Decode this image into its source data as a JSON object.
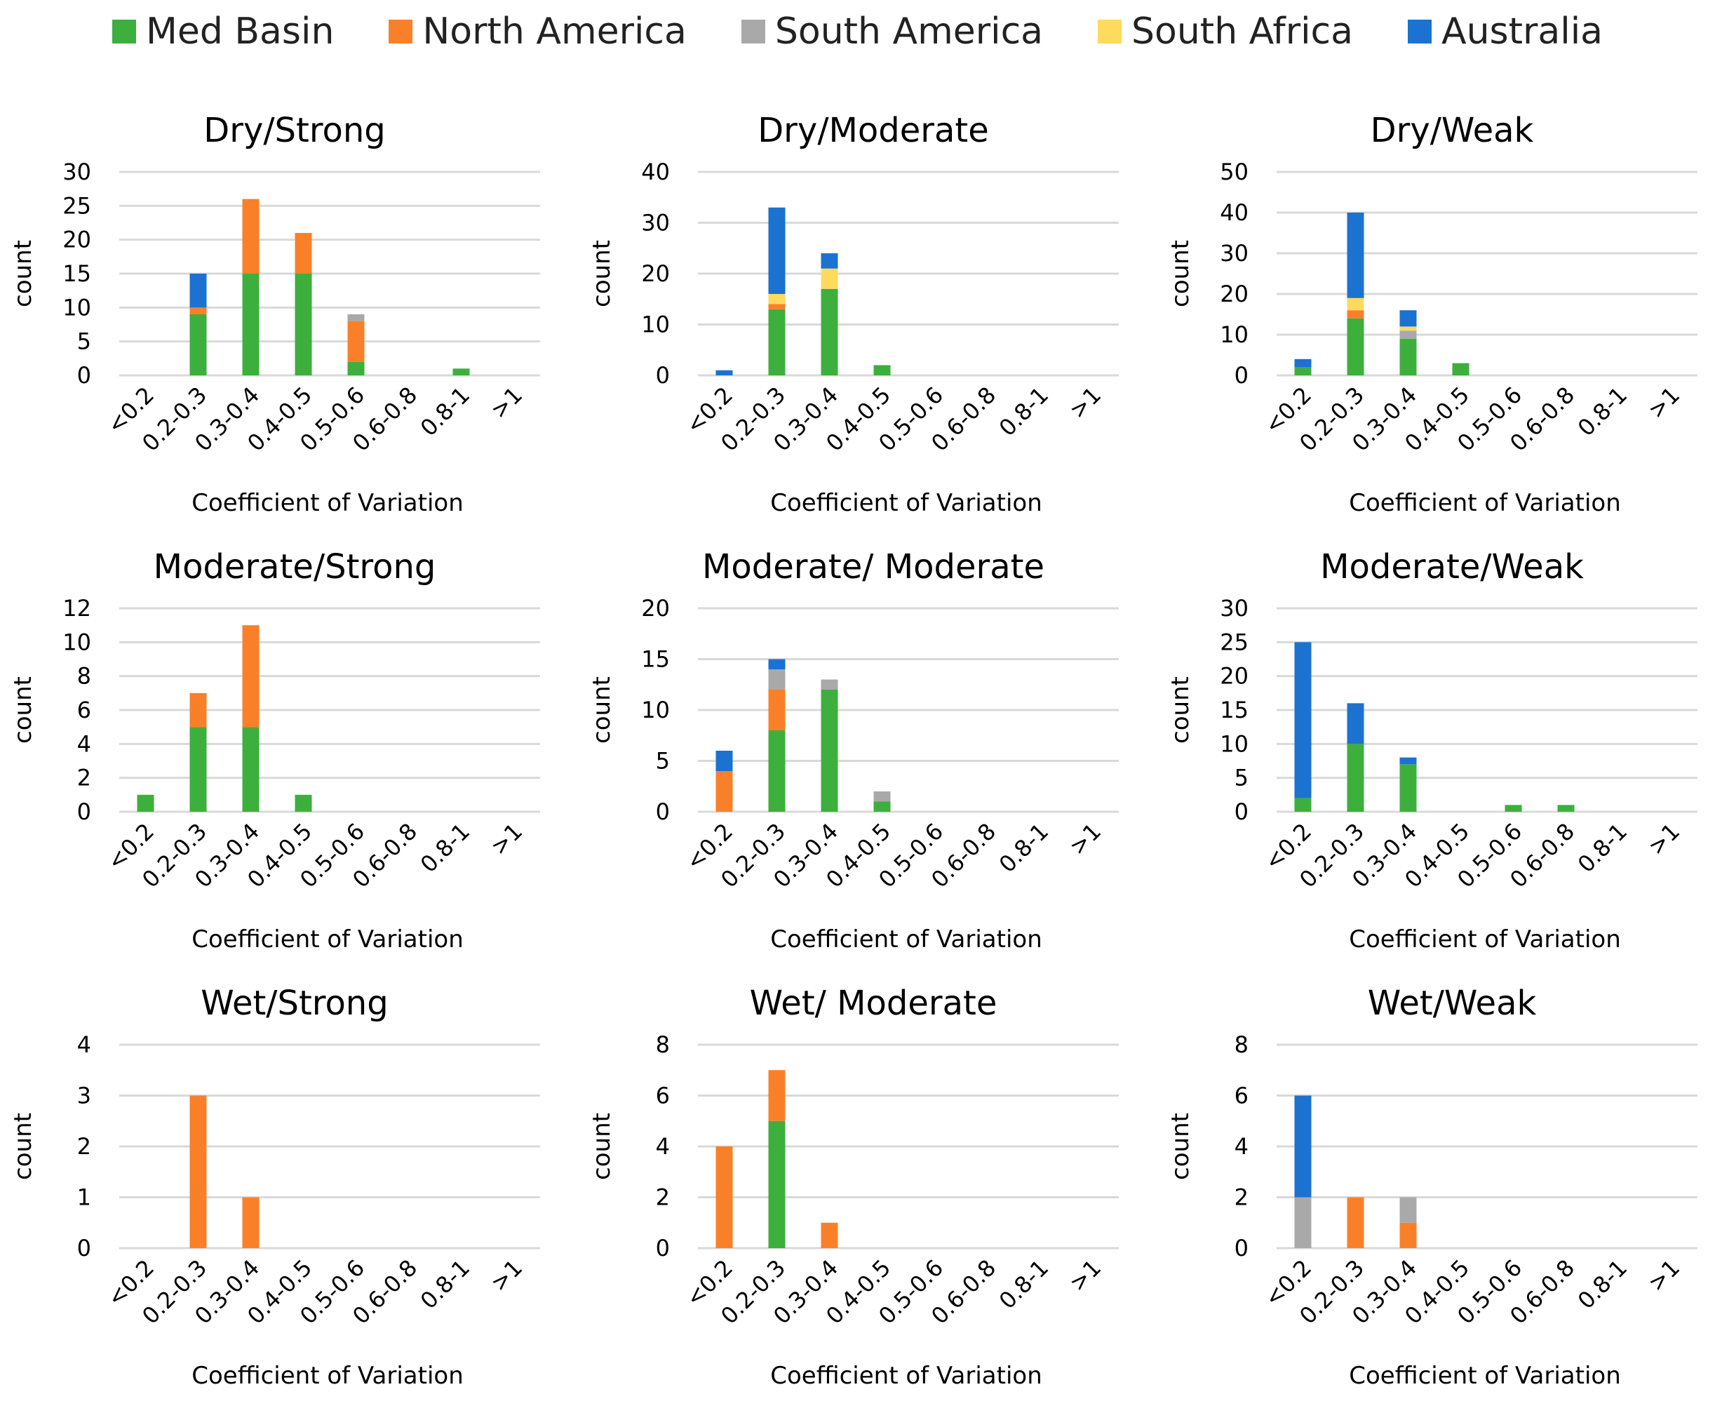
{
  "legend": {
    "items": [
      {
        "label": "Med Basin",
        "color": "#3daf3d"
      },
      {
        "label": "North America",
        "color": "#f98028"
      },
      {
        "label": "South America",
        "color": "#a9a9a9"
      },
      {
        "label": "South Africa",
        "color": "#fedb5d"
      },
      {
        "label": "Australia",
        "color": "#1b72d0"
      }
    ]
  },
  "chart_data": [
    {
      "type": "bar",
      "stacked": true,
      "title": "Dry/Strong",
      "xlabel": "Coefficient of Variation",
      "ylabel": "count",
      "ylim": [
        0,
        30
      ],
      "yticks": [
        0,
        5,
        10,
        15,
        20,
        25,
        30
      ],
      "categories": [
        "<0.2",
        "0.2-0.3",
        "0.3-0.4",
        "0.4-0.5",
        "0.5-0.6",
        "0.6-0.8",
        "0.8-1",
        ">1"
      ],
      "series": [
        {
          "name": "Med Basin",
          "values": [
            0,
            9,
            15,
            15,
            2,
            0,
            1,
            0
          ]
        },
        {
          "name": "North America",
          "values": [
            0,
            1,
            11,
            6,
            6,
            0,
            0,
            0
          ]
        },
        {
          "name": "South America",
          "values": [
            0,
            0,
            0,
            0,
            1,
            0,
            0,
            0
          ]
        },
        {
          "name": "South Africa",
          "values": [
            0,
            0,
            0,
            0,
            0,
            0,
            0,
            0
          ]
        },
        {
          "name": "Australia",
          "values": [
            0,
            5,
            0,
            0,
            0,
            0,
            0,
            0
          ]
        }
      ]
    },
    {
      "type": "bar",
      "stacked": true,
      "title": "Dry/Moderate",
      "xlabel": "Coefficient of Variation",
      "ylabel": "count",
      "ylim": [
        0,
        40
      ],
      "yticks": [
        0,
        10,
        20,
        30,
        40
      ],
      "categories": [
        "<0.2",
        "0.2-0.3",
        "0.3-0.4",
        "0.4-0.5",
        "0.5-0.6",
        "0.6-0.8",
        "0.8-1",
        ">1"
      ],
      "series": [
        {
          "name": "Med Basin",
          "values": [
            0,
            13,
            17,
            2,
            0,
            0,
            0,
            0
          ]
        },
        {
          "name": "North America",
          "values": [
            0,
            1,
            0,
            0,
            0,
            0,
            0,
            0
          ]
        },
        {
          "name": "South America",
          "values": [
            0,
            0,
            0,
            0,
            0,
            0,
            0,
            0
          ]
        },
        {
          "name": "South Africa",
          "values": [
            0,
            2,
            4,
            0,
            0,
            0,
            0,
            0
          ]
        },
        {
          "name": "Australia",
          "values": [
            1,
            17,
            3,
            0,
            0,
            0,
            0,
            0
          ]
        }
      ]
    },
    {
      "type": "bar",
      "stacked": true,
      "title": "Dry/Weak",
      "xlabel": "Coefficient of Variation",
      "ylabel": "count",
      "ylim": [
        0,
        50
      ],
      "yticks": [
        0,
        10,
        20,
        30,
        40,
        50
      ],
      "categories": [
        "<0.2",
        "0.2-0.3",
        "0.3-0.4",
        "0.4-0.5",
        "0.5-0.6",
        "0.6-0.8",
        "0.8-1",
        ">1"
      ],
      "series": [
        {
          "name": "Med Basin",
          "values": [
            2,
            14,
            9,
            3,
            0,
            0,
            0,
            0
          ]
        },
        {
          "name": "North America",
          "values": [
            0,
            2,
            0,
            0,
            0,
            0,
            0,
            0
          ]
        },
        {
          "name": "South America",
          "values": [
            0,
            0,
            2,
            0,
            0,
            0,
            0,
            0
          ]
        },
        {
          "name": "South Africa",
          "values": [
            0,
            3,
            1,
            0,
            0,
            0,
            0,
            0
          ]
        },
        {
          "name": "Australia",
          "values": [
            2,
            21,
            4,
            0,
            0,
            0,
            0,
            0
          ]
        }
      ]
    },
    {
      "type": "bar",
      "stacked": true,
      "title": "Moderate/Strong",
      "xlabel": "Coefficient of Variation",
      "ylabel": "count",
      "ylim": [
        0,
        12
      ],
      "yticks": [
        0,
        2,
        4,
        6,
        8,
        10,
        12
      ],
      "categories": [
        "<0.2",
        "0.2-0.3",
        "0.3-0.4",
        "0.4-0.5",
        "0.5-0.6",
        "0.6-0.8",
        "0.8-1",
        ">1"
      ],
      "series": [
        {
          "name": "Med Basin",
          "values": [
            1,
            5,
            5,
            1,
            0,
            0,
            0,
            0
          ]
        },
        {
          "name": "North America",
          "values": [
            0,
            2,
            6,
            0,
            0,
            0,
            0,
            0
          ]
        },
        {
          "name": "South America",
          "values": [
            0,
            0,
            0,
            0,
            0,
            0,
            0,
            0
          ]
        },
        {
          "name": "South Africa",
          "values": [
            0,
            0,
            0,
            0,
            0,
            0,
            0,
            0
          ]
        },
        {
          "name": "Australia",
          "values": [
            0,
            0,
            0,
            0,
            0,
            0,
            0,
            0
          ]
        }
      ]
    },
    {
      "type": "bar",
      "stacked": true,
      "title": "Moderate/ Moderate",
      "xlabel": "Coefficient of Variation",
      "ylabel": "count",
      "ylim": [
        0,
        20
      ],
      "yticks": [
        0,
        5,
        10,
        15,
        20
      ],
      "categories": [
        "<0.2",
        "0.2-0.3",
        "0.3-0.4",
        "0.4-0.5",
        "0.5-0.6",
        "0.6-0.8",
        "0.8-1",
        ">1"
      ],
      "series": [
        {
          "name": "Med Basin",
          "values": [
            0,
            8,
            12,
            1,
            0,
            0,
            0,
            0
          ]
        },
        {
          "name": "North America",
          "values": [
            4,
            4,
            0,
            0,
            0,
            0,
            0,
            0
          ]
        },
        {
          "name": "South America",
          "values": [
            0,
            2,
            1,
            1,
            0,
            0,
            0,
            0
          ]
        },
        {
          "name": "South Africa",
          "values": [
            0,
            0,
            0,
            0,
            0,
            0,
            0,
            0
          ]
        },
        {
          "name": "Australia",
          "values": [
            2,
            1,
            0,
            0,
            0,
            0,
            0,
            0
          ]
        }
      ]
    },
    {
      "type": "bar",
      "stacked": true,
      "title": "Moderate/Weak",
      "xlabel": "Coefficient of Variation",
      "ylabel": "count",
      "ylim": [
        0,
        30
      ],
      "yticks": [
        0,
        5,
        10,
        15,
        20,
        25,
        30
      ],
      "categories": [
        "<0.2",
        "0.2-0.3",
        "0.3-0.4",
        "0.4-0.5",
        "0.5-0.6",
        "0.6-0.8",
        "0.8-1",
        ">1"
      ],
      "series": [
        {
          "name": "Med Basin",
          "values": [
            2,
            10,
            7,
            0,
            1,
            1,
            0,
            0
          ]
        },
        {
          "name": "North America",
          "values": [
            0,
            0,
            0,
            0,
            0,
            0,
            0,
            0
          ]
        },
        {
          "name": "South America",
          "values": [
            0,
            0,
            0,
            0,
            0,
            0,
            0,
            0
          ]
        },
        {
          "name": "South Africa",
          "values": [
            0,
            0,
            0,
            0,
            0,
            0,
            0,
            0
          ]
        },
        {
          "name": "Australia",
          "values": [
            23,
            6,
            1,
            0,
            0,
            0,
            0,
            0
          ]
        }
      ]
    },
    {
      "type": "bar",
      "stacked": true,
      "title": "Wet/Strong",
      "xlabel": "Coefficient of Variation",
      "ylabel": "count",
      "ylim": [
        0,
        4
      ],
      "yticks": [
        0,
        1,
        2,
        3,
        4
      ],
      "categories": [
        "<0.2",
        "0.2-0.3",
        "0.3-0.4",
        "0.4-0.5",
        "0.5-0.6",
        "0.6-0.8",
        "0.8-1",
        ">1"
      ],
      "series": [
        {
          "name": "Med Basin",
          "values": [
            0,
            0,
            0,
            0,
            0,
            0,
            0,
            0
          ]
        },
        {
          "name": "North America",
          "values": [
            0,
            3,
            1,
            0,
            0,
            0,
            0,
            0
          ]
        },
        {
          "name": "South America",
          "values": [
            0,
            0,
            0,
            0,
            0,
            0,
            0,
            0
          ]
        },
        {
          "name": "South Africa",
          "values": [
            0,
            0,
            0,
            0,
            0,
            0,
            0,
            0
          ]
        },
        {
          "name": "Australia",
          "values": [
            0,
            0,
            0,
            0,
            0,
            0,
            0,
            0
          ]
        }
      ]
    },
    {
      "type": "bar",
      "stacked": true,
      "title": "Wet/ Moderate",
      "xlabel": "Coefficient of Variation",
      "ylabel": "count",
      "ylim": [
        0,
        8
      ],
      "yticks": [
        0,
        2,
        4,
        6,
        8
      ],
      "categories": [
        "<0.2",
        "0.2-0.3",
        "0.3-0.4",
        "0.4-0.5",
        "0.5-0.6",
        "0.6-0.8",
        "0.8-1",
        ">1"
      ],
      "series": [
        {
          "name": "Med Basin",
          "values": [
            0,
            5,
            0,
            0,
            0,
            0,
            0,
            0
          ]
        },
        {
          "name": "North America",
          "values": [
            4,
            2,
            1,
            0,
            0,
            0,
            0,
            0
          ]
        },
        {
          "name": "South America",
          "values": [
            0,
            0,
            0,
            0,
            0,
            0,
            0,
            0
          ]
        },
        {
          "name": "South Africa",
          "values": [
            0,
            0,
            0,
            0,
            0,
            0,
            0,
            0
          ]
        },
        {
          "name": "Australia",
          "values": [
            0,
            0,
            0,
            0,
            0,
            0,
            0,
            0
          ]
        }
      ]
    },
    {
      "type": "bar",
      "stacked": true,
      "title": "Wet/Weak",
      "xlabel": "Coefficient of Variation",
      "ylabel": "count",
      "ylim": [
        0,
        8
      ],
      "yticks": [
        0,
        2,
        4,
        6,
        8
      ],
      "categories": [
        "<0.2",
        "0.2-0.3",
        "0.3-0.4",
        "0.4-0.5",
        "0.5-0.6",
        "0.6-0.8",
        "0.8-1",
        ">1"
      ],
      "series": [
        {
          "name": "Med Basin",
          "values": [
            0,
            0,
            0,
            0,
            0,
            0,
            0,
            0
          ]
        },
        {
          "name": "North America",
          "values": [
            0,
            2,
            1,
            0,
            0,
            0,
            0,
            0
          ]
        },
        {
          "name": "South America",
          "values": [
            2,
            0,
            1,
            0,
            0,
            0,
            0,
            0
          ]
        },
        {
          "name": "South Africa",
          "values": [
            0,
            0,
            0,
            0,
            0,
            0,
            0,
            0
          ]
        },
        {
          "name": "Australia",
          "values": [
            4,
            0,
            0,
            0,
            0,
            0,
            0,
            0
          ]
        }
      ]
    }
  ]
}
